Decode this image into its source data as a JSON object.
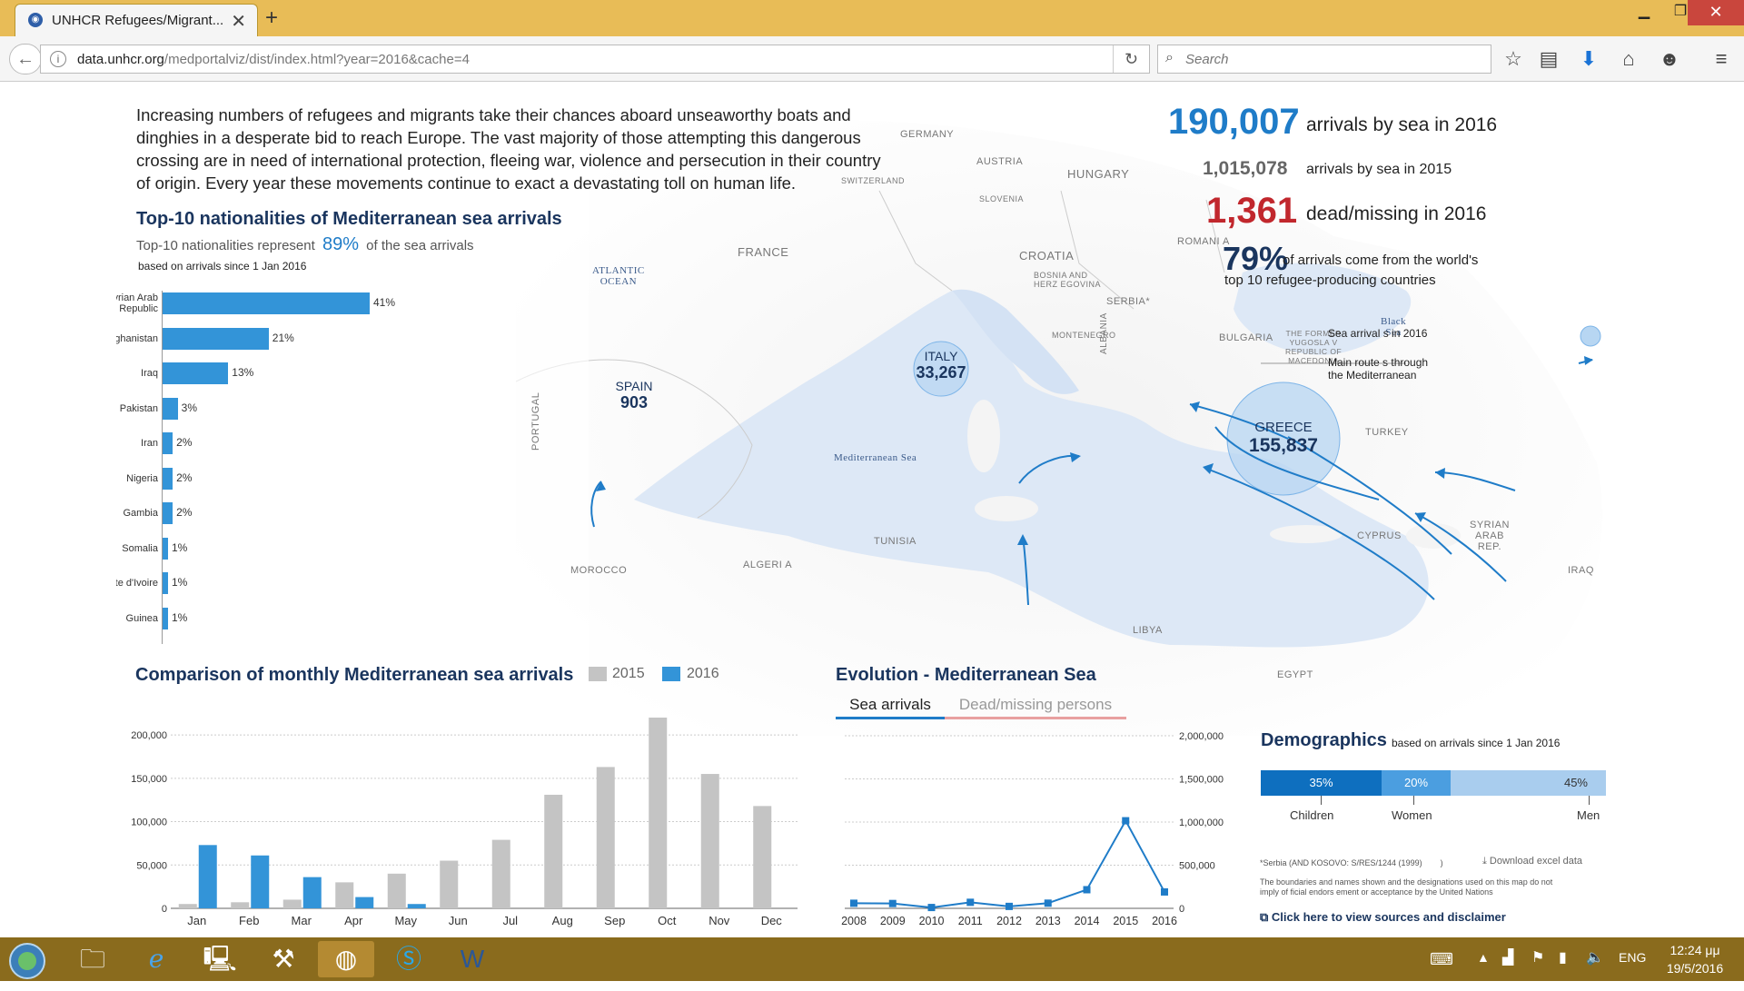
{
  "browser": {
    "tab_title": "UNHCR Refugees/Migrant...",
    "url_domain": "data.unhcr.org",
    "url_path": "/medportalviz/dist/index.html?year=2016&cache=4",
    "search_placeholder": "Search",
    "new_tab": "+",
    "close_tab": "✕"
  },
  "intro": "Increasing numbers of refugees and migrants take their chances aboard unseaworthy boats and dinghies in a desperate bid to reach Europe. The vast majority of those attempting this dangerous crossing are in need of international protection, fleeing war, violence and persecution in their country of origin. Every year these movements continue to exact a devastating toll on human life.",
  "stats": {
    "arrivals_2016": "190,007",
    "arrivals_2016_label": "arrivals by sea in 2016",
    "arrivals_2015": "1,015,078",
    "arrivals_2015_label": "arrivals by sea in 2015",
    "dead_2016": "1,361",
    "dead_2016_label": "dead/missing in 2016",
    "top10_pct": "79%",
    "top10_label_1": "of arrivals come from the world's",
    "top10_label_2": "top 10 refugee-producing countries"
  },
  "nationalities": {
    "title": "Top-10 nationalities of Mediterranean sea arrivals",
    "subtitle_pre": "Top-10 nationalities represent",
    "subtitle_pct": "89%",
    "subtitle_post": "of the sea arrivals",
    "note": "based on arrivals since 1 Jan 2016",
    "items": [
      {
        "label": "Syrian Arab Republic",
        "pct": "41%",
        "value": 41
      },
      {
        "label": "Afghanistan",
        "pct": "21%",
        "value": 21
      },
      {
        "label": "Iraq",
        "pct": "13%",
        "value": 13
      },
      {
        "label": "Pakistan",
        "pct": "3%",
        "value": 3
      },
      {
        "label": "Iran",
        "pct": "2%",
        "value": 2
      },
      {
        "label": "Nigeria",
        "pct": "2%",
        "value": 2
      },
      {
        "label": "Gambia",
        "pct": "2%",
        "value": 2
      },
      {
        "label": "Somalia",
        "pct": "1%",
        "value": 1
      },
      {
        "label": "Côte d'Ivoire",
        "pct": "1%",
        "value": 1
      },
      {
        "label": "Guinea",
        "pct": "1%",
        "value": 1
      }
    ]
  },
  "map": {
    "legend_arrivals": "Sea arrival s in 2016",
    "legend_routes_1": "Main route s through",
    "legend_routes_2": "the Mediterranean",
    "italy_name": "ITALY",
    "italy_value": "33,267",
    "greece_name": "GREECE",
    "greece_value": "155,837",
    "spain_name": "SPAIN",
    "spain_value": "903",
    "labels": {
      "germany": "GERMANY",
      "austria": "AUSTRIA",
      "hungary": "HUNGARY",
      "switzerland": "SWITZERLAND",
      "slovenia": "SLOVENIA",
      "croatia": "CROATIA",
      "romania": "ROMANI A",
      "bosnia_1": "BOSNIA AND",
      "bosnia_2": "HERZ EGOVINA",
      "serbia": "SERBIA*",
      "montenegro": "MONTENEGRO",
      "bulgaria": "BULGARIA",
      "macedonia_1": "THE FORMER",
      "macedonia_2": "YUGOSLA V",
      "macedonia_3": "REPUBLIC OF",
      "macedonia_4": "MACEDONIA",
      "albania": "ALBANIA",
      "france": "FRANCE",
      "atlantic_1": "ATLANTIC",
      "atlantic_2": "OCEAN",
      "portugal": "PORTUGAL",
      "black_sea_1": "Black",
      "black_sea_2": "Sea",
      "turkey": "TURKEY",
      "med_sea": "Mediterranean Sea",
      "tunisia": "TUNISIA",
      "morocco": "MOROCCO",
      "algeria": "ALGERI A",
      "libya": "LIBYA",
      "egypt": "EGYPT",
      "cyprus": "CYPRUS",
      "syria_1": "SYRIAN",
      "syria_2": "ARAB",
      "syria_3": "REP.",
      "iraq": "IRAQ"
    }
  },
  "monthly": {
    "title": "Comparison of monthly Mediterranean sea arrivals",
    "legend_2015": "2015",
    "legend_2016": "2016",
    "colors": {
      "y2015": "#c4c4c4",
      "y2016": "#3394d8"
    },
    "yticks": [
      "0",
      "50,000",
      "100,000",
      "150,000",
      "200,000"
    ]
  },
  "evolution": {
    "title": "Evolution - Mediterranean Sea",
    "tab_active": "Sea arrivals",
    "tab_inactive": "Dead/missing persons",
    "yticks": [
      "0",
      "500,000",
      "1,000,000",
      "1,500,000",
      "2,000,000"
    ]
  },
  "demographics": {
    "title": "Demographics",
    "note": "based on arrivals since 1 Jan 2016",
    "children_pct": "35%",
    "children_label": "Children",
    "children_value": 35,
    "women_pct": "20%",
    "women_label": "Women",
    "women_value": 20,
    "men_pct": "45%",
    "men_label": "Men",
    "men_value": 45,
    "colors": {
      "children": "#0e6fbf",
      "women": "#4b9ee0",
      "men": "#a9cdee"
    }
  },
  "footer": {
    "serbia_note": "*Serbia (AND KOSOVO: S/RES/1244 (1999)",
    "serbia_paren": ")",
    "boundaries_1": "The boundaries and names shown and the designations used on this map do not",
    "boundaries_2": "imply of ficial endors ement or acceptance by the United Nations",
    "download": "Download excel data",
    "sources": "Click here to view sources and disclaimer"
  },
  "taskbar": {
    "lang": "ENG",
    "time": "12:24 μμ",
    "date": "19/5/2016"
  },
  "chart_data": [
    {
      "type": "bar",
      "title": "Top-10 nationalities of Mediterranean sea arrivals",
      "categories": [
        "Syrian Arab Republic",
        "Afghanistan",
        "Iraq",
        "Pakistan",
        "Iran",
        "Nigeria",
        "Gambia",
        "Somalia",
        "Côte d'Ivoire",
        "Guinea"
      ],
      "values": [
        41,
        21,
        13,
        3,
        2,
        2,
        2,
        1,
        1,
        1
      ],
      "orientation": "horizontal",
      "unit": "%"
    },
    {
      "type": "bar",
      "title": "Comparison of monthly Mediterranean sea arrivals",
      "categories": [
        "Jan",
        "Feb",
        "Mar",
        "Apr",
        "May",
        "Jun",
        "Jul",
        "Aug",
        "Sep",
        "Oct",
        "Nov",
        "Dec"
      ],
      "series": [
        {
          "name": "2015",
          "values": [
            5000,
            7000,
            10000,
            30000,
            40000,
            55000,
            79000,
            131000,
            163000,
            220000,
            155000,
            118000
          ]
        },
        {
          "name": "2016",
          "values": [
            73000,
            61000,
            36000,
            13000,
            5000,
            null,
            null,
            null,
            null,
            null,
            null,
            null
          ]
        }
      ],
      "ylim": [
        0,
        220000
      ],
      "yticks": [
        0,
        50000,
        100000,
        150000,
        200000
      ],
      "grid": true,
      "legend": "top"
    },
    {
      "type": "line",
      "title": "Evolution - Mediterranean Sea",
      "x": [
        2008,
        2009,
        2010,
        2011,
        2012,
        2013,
        2014,
        2015,
        2016
      ],
      "series": [
        {
          "name": "Sea arrivals",
          "values": [
            59000,
            56000,
            9700,
            70000,
            22500,
            60000,
            216000,
            1015078,
            190007
          ]
        }
      ],
      "ylim": [
        0,
        2000000
      ],
      "yticks": [
        0,
        500000,
        1000000,
        1500000,
        2000000
      ],
      "grid": true,
      "yaxis_side": "right"
    }
  ]
}
